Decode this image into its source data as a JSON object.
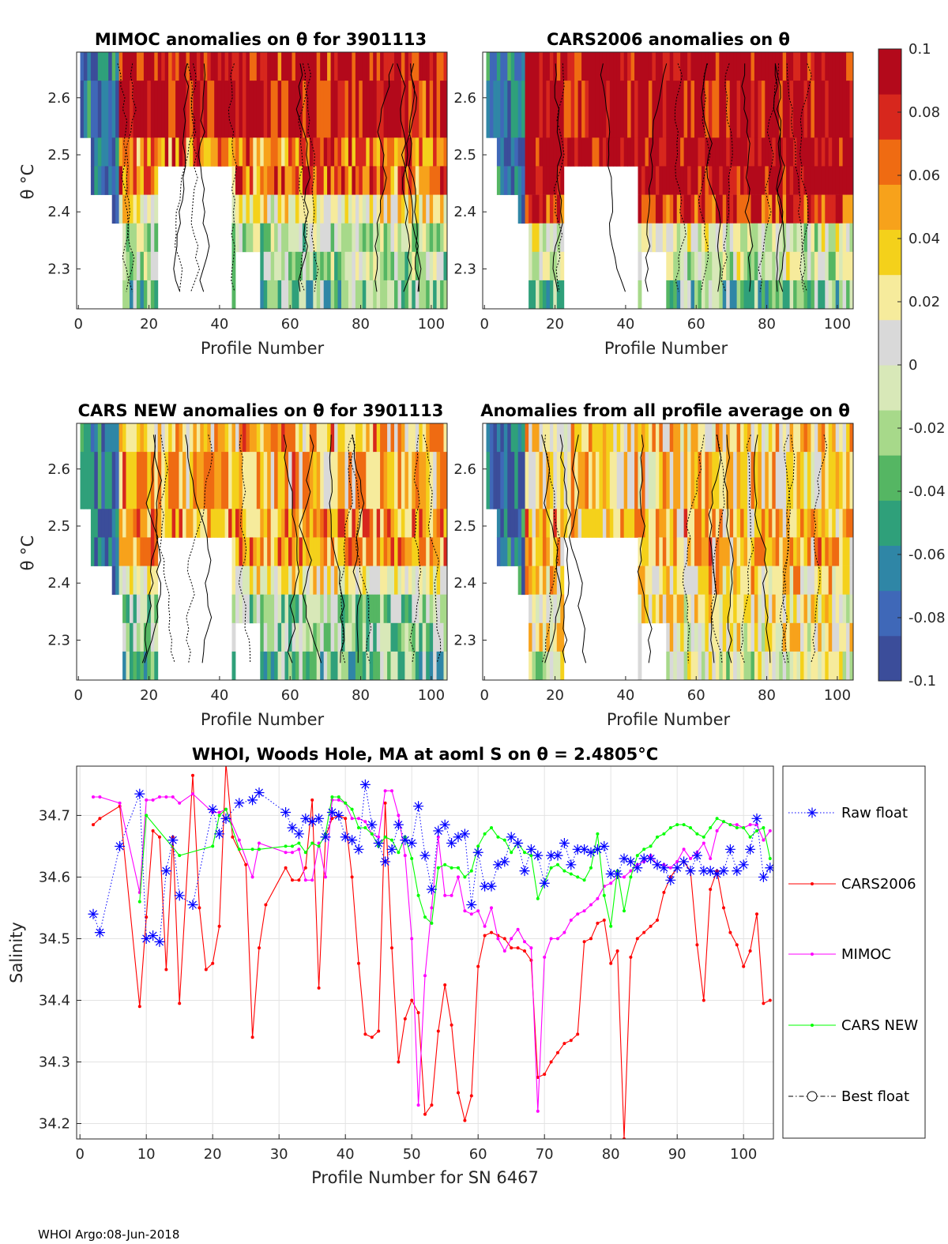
{
  "colors": {
    "raw_float": "#0000ff",
    "cars2006": "#ff0000",
    "mimoc": "#ff00ff",
    "cars_new": "#00ff00",
    "best_float": "#000000",
    "colormap": [
      "#3b4d9a",
      "#3f68b8",
      "#2f86a6",
      "#2fa07a",
      "#55b663",
      "#a7d98a",
      "#d8e8b8",
      "#d9d9d9",
      "#f6eb9c",
      "#f4d11b",
      "#f7a21b",
      "#ef6b12",
      "#d7271d",
      "#b3091b"
    ]
  },
  "heatmaps": [
    {
      "title": "MIMOC anomalies on θ  for 3901113",
      "xlabel": "Profile Number",
      "ylabel": "θ °C",
      "xticks": [
        0,
        20,
        40,
        60,
        80,
        100
      ],
      "yticks": [
        2.3,
        2.4,
        2.5,
        2.6
      ],
      "xlim": [
        -0.5,
        104.5
      ],
      "ylim": [
        2.23,
        2.68
      ],
      "seed": 11,
      "bias": [
        0.09,
        0.06,
        0.02,
        -0.01,
        -0.03
      ]
    },
    {
      "title": "CARS2006 anomalies on θ",
      "xlabel": "Profile Number",
      "ylabel": "",
      "xticks": [
        0,
        20,
        40,
        60,
        80,
        100
      ],
      "yticks": [
        2.3,
        2.4,
        2.5,
        2.6
      ],
      "xlim": [
        -0.5,
        104.5
      ],
      "ylim": [
        2.23,
        2.68
      ],
      "seed": 23,
      "bias": [
        0.1,
        0.1,
        0.08,
        0.0,
        -0.03
      ]
    },
    {
      "title": "CARS NEW anomalies on θ for 3901113",
      "xlabel": "Profile Number",
      "ylabel": "θ °C",
      "xticks": [
        0,
        20,
        40,
        60,
        80,
        100
      ],
      "yticks": [
        2.3,
        2.4,
        2.5,
        2.6
      ],
      "xlim": [
        -0.5,
        104.5
      ],
      "ylim": [
        2.23,
        2.68
      ],
      "seed": 37,
      "bias": [
        0.04,
        0.05,
        0.02,
        -0.02,
        -0.03
      ]
    },
    {
      "title": "Anomalies from all profile average on θ",
      "xlabel": "Profile Number",
      "ylabel": "",
      "xticks": [
        0,
        20,
        40,
        60,
        80,
        100
      ],
      "yticks": [
        2.3,
        2.4,
        2.5,
        2.6
      ],
      "xlim": [
        -0.5,
        104.5
      ],
      "ylim": [
        2.23,
        2.68
      ],
      "seed": 53,
      "bias": [
        0.03,
        0.04,
        0.03,
        0.02,
        0.0
      ]
    }
  ],
  "colorbar": {
    "ticks": [
      "0.1",
      "0.08",
      "0.06",
      "0.04",
      "0.02",
      "0",
      "-0.02",
      "-0.04",
      "-0.06",
      "-0.08",
      "-0.1"
    ],
    "range": [
      -0.1,
      0.1
    ]
  },
  "chart_data": {
    "type": "line",
    "title": "WHOI, Woods Hole, MA at aoml S on θ = 2.4805°C",
    "xlabel": "Profile Number for SN 6467",
    "ylabel": "Salinity",
    "xlim": [
      -0.5,
      104.5
    ],
    "ylim": [
      34.175,
      34.78
    ],
    "xticks": [
      0,
      10,
      20,
      30,
      40,
      50,
      60,
      70,
      80,
      90,
      100
    ],
    "yticks": [
      34.2,
      34.3,
      34.4,
      34.5,
      34.6,
      34.7
    ],
    "ytick_labels": [
      "34.2",
      "34.3",
      "34.4",
      "34.5",
      "34.6",
      "34.7"
    ],
    "legend_position": "outside-right",
    "series": [
      {
        "name": "Raw float",
        "style": "dotted-star",
        "x": [
          2,
          3,
          6,
          9,
          10,
          11,
          12,
          13,
          14,
          15,
          17,
          20,
          21,
          22,
          24,
          26,
          27,
          31,
          32,
          33,
          34,
          35,
          36,
          37,
          38,
          39,
          40,
          41,
          42,
          43,
          44,
          45,
          46,
          47,
          48,
          49,
          50,
          51,
          52,
          53,
          54,
          55,
          56,
          57,
          58,
          59,
          60,
          61,
          62,
          63,
          64,
          65,
          66,
          67,
          68,
          69,
          70,
          71,
          72,
          73,
          74,
          75,
          76,
          77,
          78,
          79,
          80,
          81,
          82,
          83,
          84,
          85,
          86,
          87,
          88,
          89,
          90,
          91,
          92,
          93,
          94,
          95,
          96,
          97,
          98,
          99,
          100,
          101,
          102,
          103,
          104
        ],
        "values": [
          34.54,
          34.51,
          34.65,
          34.735,
          34.5,
          34.505,
          34.495,
          34.61,
          34.66,
          34.57,
          34.555,
          34.71,
          34.67,
          34.695,
          34.72,
          34.725,
          34.737,
          34.705,
          34.68,
          34.67,
          34.695,
          34.69,
          34.695,
          34.665,
          34.705,
          34.7,
          34.665,
          34.66,
          34.645,
          34.75,
          34.685,
          34.655,
          34.625,
          34.645,
          34.685,
          34.66,
          34.655,
          34.715,
          34.635,
          34.58,
          34.675,
          34.685,
          34.655,
          34.665,
          34.67,
          34.555,
          34.64,
          34.585,
          34.585,
          34.62,
          34.625,
          34.665,
          34.655,
          34.61,
          34.645,
          34.635,
          34.59,
          34.635,
          34.635,
          34.655,
          34.62,
          34.645,
          34.645,
          34.64,
          34.645,
          34.65,
          34.605,
          34.605,
          34.63,
          34.625,
          34.615,
          34.63,
          34.63,
          34.62,
          34.615,
          34.595,
          34.615,
          34.625,
          34.61,
          34.635,
          34.61,
          34.61,
          34.605,
          34.61,
          34.645,
          34.61,
          34.62,
          34.645,
          34.695,
          34.6,
          34.615
        ]
      },
      {
        "name": "CARS2006",
        "style": "solid-point",
        "x": [
          2,
          3,
          6,
          9,
          10,
          11,
          12,
          13,
          14,
          15,
          17,
          18,
          19,
          20,
          21,
          22,
          23,
          25,
          26,
          27,
          28,
          31,
          32,
          33,
          34,
          35,
          36,
          37,
          38,
          39,
          40,
          41,
          42,
          43,
          44,
          45,
          46,
          47,
          48,
          49,
          50,
          51,
          52,
          53,
          54,
          55,
          56,
          57,
          58,
          59,
          60,
          61,
          62,
          63,
          64,
          65,
          66,
          67,
          68,
          69,
          70,
          71,
          72,
          73,
          74,
          75,
          76,
          77,
          78,
          79,
          80,
          81,
          82,
          83,
          84,
          85,
          86,
          87,
          88,
          89,
          90,
          91,
          92,
          93,
          94,
          95,
          96,
          97,
          98,
          99,
          100,
          101,
          102,
          103,
          104
        ],
        "values": [
          34.685,
          34.695,
          34.715,
          34.39,
          34.535,
          34.675,
          34.665,
          34.45,
          34.665,
          34.395,
          34.765,
          34.55,
          34.45,
          34.46,
          34.52,
          34.785,
          34.665,
          34.62,
          34.34,
          34.485,
          34.555,
          34.615,
          34.595,
          34.595,
          34.615,
          34.725,
          34.42,
          34.665,
          34.695,
          34.7,
          34.695,
          34.6,
          34.46,
          34.345,
          34.34,
          34.35,
          34.72,
          34.485,
          34.3,
          34.37,
          34.4,
          34.38,
          34.215,
          34.23,
          34.35,
          34.425,
          34.36,
          34.25,
          34.205,
          34.245,
          34.455,
          34.505,
          34.51,
          34.505,
          34.5,
          34.485,
          34.485,
          34.48,
          34.465,
          34.275,
          34.28,
          34.3,
          34.315,
          34.33,
          34.335,
          34.345,
          34.495,
          34.5,
          34.525,
          34.53,
          34.46,
          34.48,
          34.175,
          34.47,
          34.5,
          34.51,
          34.52,
          34.53,
          34.575,
          34.6,
          34.615,
          34.625,
          34.61,
          34.49,
          34.4,
          34.58,
          34.61,
          34.55,
          34.51,
          34.49,
          34.455,
          34.48,
          34.54,
          34.395,
          34.4
        ]
      },
      {
        "name": "MIMOC",
        "style": "solid-point",
        "x": [
          2,
          3,
          6,
          9,
          10,
          11,
          12,
          13,
          14,
          15,
          17,
          20,
          21,
          22,
          24,
          26,
          27,
          31,
          32,
          33,
          34,
          35,
          36,
          37,
          38,
          39,
          40,
          41,
          42,
          43,
          44,
          45,
          46,
          47,
          48,
          49,
          50,
          51,
          52,
          53,
          54,
          55,
          56,
          57,
          58,
          59,
          60,
          61,
          62,
          63,
          64,
          65,
          66,
          67,
          68,
          69,
          70,
          71,
          72,
          73,
          74,
          75,
          76,
          77,
          78,
          79,
          80,
          81,
          82,
          83,
          84,
          85,
          86,
          87,
          88,
          89,
          90,
          91,
          92,
          93,
          94,
          95,
          96,
          97,
          98,
          99,
          100,
          101,
          102,
          103,
          104
        ],
        "values": [
          34.73,
          34.73,
          34.72,
          34.575,
          34.725,
          34.725,
          34.73,
          34.73,
          34.73,
          34.72,
          34.735,
          34.705,
          34.705,
          34.71,
          34.66,
          34.6,
          34.655,
          34.64,
          34.64,
          34.645,
          34.595,
          34.595,
          34.655,
          34.6,
          34.725,
          34.725,
          34.72,
          34.695,
          34.695,
          34.69,
          34.67,
          34.665,
          34.74,
          34.74,
          34.7,
          34.635,
          34.5,
          34.23,
          34.44,
          34.55,
          34.665,
          34.57,
          34.57,
          34.6,
          34.545,
          34.54,
          34.545,
          34.52,
          34.55,
          34.5,
          34.48,
          34.5,
          34.515,
          34.495,
          34.485,
          34.22,
          34.47,
          34.5,
          34.5,
          34.51,
          34.53,
          34.54,
          34.545,
          34.555,
          34.565,
          34.585,
          34.59,
          34.6,
          34.6,
          34.61,
          34.62,
          34.625,
          34.635,
          34.62,
          34.62,
          34.615,
          34.625,
          34.645,
          34.63,
          34.64,
          34.655,
          34.63,
          34.675,
          34.69,
          34.685,
          34.685,
          34.68,
          34.685,
          34.685,
          34.66,
          34.675
        ]
      },
      {
        "name": "CARS NEW",
        "style": "solid-point",
        "x": [
          9,
          10,
          15,
          20,
          21,
          22,
          24,
          26,
          27,
          31,
          32,
          33,
          34,
          35,
          36,
          37,
          38,
          39,
          40,
          41,
          42,
          43,
          44,
          45,
          46,
          47,
          48,
          49,
          50,
          51,
          52,
          53,
          54,
          55,
          56,
          57,
          58,
          59,
          60,
          61,
          62,
          63,
          64,
          65,
          66,
          67,
          68,
          69,
          70,
          71,
          72,
          73,
          74,
          75,
          76,
          77,
          78,
          79,
          80,
          81,
          82,
          83,
          84,
          85,
          86,
          87,
          88,
          89,
          90,
          91,
          92,
          93,
          94,
          95,
          96,
          97,
          98,
          99,
          100,
          101,
          102,
          103,
          104
        ],
        "values": [
          34.56,
          34.7,
          34.635,
          34.65,
          34.7,
          34.71,
          34.645,
          34.645,
          34.645,
          34.65,
          34.65,
          34.655,
          34.64,
          34.655,
          34.65,
          34.67,
          34.73,
          34.73,
          34.72,
          34.71,
          34.68,
          34.68,
          34.67,
          34.65,
          34.665,
          34.66,
          34.64,
          34.665,
          34.63,
          34.57,
          34.535,
          34.525,
          34.615,
          34.62,
          34.615,
          34.615,
          34.6,
          34.61,
          34.65,
          34.67,
          34.68,
          34.665,
          34.66,
          34.64,
          34.655,
          34.64,
          34.635,
          34.565,
          34.59,
          34.615,
          34.62,
          34.61,
          34.605,
          34.6,
          34.595,
          34.615,
          34.67,
          34.57,
          34.52,
          34.61,
          34.545,
          34.6,
          34.635,
          34.645,
          34.65,
          34.665,
          34.67,
          34.68,
          34.685,
          34.685,
          34.68,
          34.67,
          34.665,
          34.68,
          34.695,
          34.69,
          34.685,
          34.68,
          34.68,
          34.665,
          34.675,
          34.68,
          34.63
        ]
      },
      {
        "name": "Best float",
        "style": "dash-dot-circle",
        "x": [],
        "values": []
      }
    ]
  },
  "footer": "WHOI Argo:08-Jun-2018"
}
